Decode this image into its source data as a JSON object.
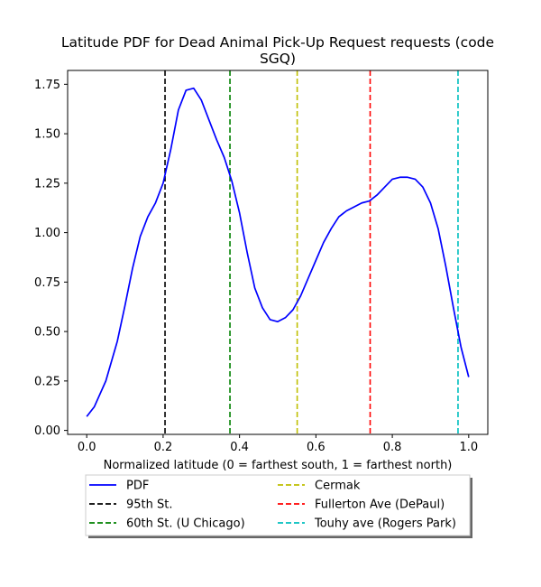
{
  "chart_data": {
    "type": "line",
    "title_line1": "Latitude PDF for Dead Animal Pick-Up Request  requests (code",
    "title_line2": "SGQ)",
    "xlabel": "Normalized latitude (0 = farthest south, 1 = farthest north)",
    "ylabel": "",
    "xlim": [
      -0.05,
      1.05
    ],
    "ylim": [
      -0.02,
      1.82
    ],
    "x_ticks": [
      0.0,
      0.2,
      0.4,
      0.6,
      0.8,
      1.0
    ],
    "x_tick_labels": [
      "0.0",
      "0.2",
      "0.4",
      "0.6",
      "0.8",
      "1.0"
    ],
    "y_ticks": [
      0.0,
      0.25,
      0.5,
      0.75,
      1.0,
      1.25,
      1.5,
      1.75
    ],
    "y_tick_labels": [
      "0.00",
      "0.25",
      "0.50",
      "0.75",
      "1.00",
      "1.25",
      "1.50",
      "1.75"
    ],
    "grid": false,
    "legend_placement": "below the axes, two columns",
    "series": [
      {
        "name": "PDF",
        "color": "#0000ff",
        "style": "solid",
        "x": [
          0.0,
          0.02,
          0.05,
          0.08,
          0.1,
          0.12,
          0.14,
          0.16,
          0.18,
          0.2,
          0.22,
          0.24,
          0.26,
          0.28,
          0.3,
          0.32,
          0.34,
          0.36,
          0.38,
          0.4,
          0.42,
          0.44,
          0.46,
          0.48,
          0.5,
          0.52,
          0.54,
          0.56,
          0.58,
          0.6,
          0.62,
          0.64,
          0.66,
          0.68,
          0.7,
          0.72,
          0.74,
          0.76,
          0.78,
          0.8,
          0.82,
          0.84,
          0.86,
          0.88,
          0.9,
          0.92,
          0.94,
          0.96,
          0.98,
          1.0
        ],
        "y": [
          0.07,
          0.12,
          0.25,
          0.45,
          0.63,
          0.82,
          0.98,
          1.08,
          1.15,
          1.25,
          1.42,
          1.62,
          1.72,
          1.73,
          1.67,
          1.57,
          1.47,
          1.38,
          1.26,
          1.1,
          0.9,
          0.72,
          0.62,
          0.56,
          0.55,
          0.57,
          0.61,
          0.68,
          0.77,
          0.86,
          0.95,
          1.02,
          1.08,
          1.11,
          1.13,
          1.15,
          1.16,
          1.19,
          1.23,
          1.27,
          1.28,
          1.28,
          1.27,
          1.23,
          1.15,
          1.02,
          0.83,
          0.62,
          0.42,
          0.27
        ]
      }
    ],
    "vlines": [
      {
        "name": "95th St.",
        "x": 0.205,
        "color": "#000000",
        "style": "dashed"
      },
      {
        "name": "60th St. (U Chicago)",
        "x": 0.375,
        "color": "#008000",
        "style": "dashed"
      },
      {
        "name": "Cermak",
        "x": 0.551,
        "color": "#bfbf00",
        "style": "dashed"
      },
      {
        "name": "Fullerton Ave (DePaul)",
        "x": 0.742,
        "color": "#ff0000",
        "style": "dashed"
      },
      {
        "name": "Touhy ave (Rogers Park)",
        "x": 0.972,
        "color": "#00bfbf",
        "style": "dashed"
      }
    ],
    "legend": [
      {
        "label": "PDF",
        "color": "#0000ff",
        "style": "solid"
      },
      {
        "label": "95th St.",
        "color": "#000000",
        "style": "dashed"
      },
      {
        "label": "60th St. (U Chicago)",
        "color": "#008000",
        "style": "dashed"
      },
      {
        "label": "Cermak",
        "color": "#bfbf00",
        "style": "dashed"
      },
      {
        "label": "Fullerton Ave (DePaul)",
        "color": "#ff0000",
        "style": "dashed"
      },
      {
        "label": "Touhy ave (Rogers Park)",
        "color": "#00bfbf",
        "style": "dashed"
      }
    ]
  }
}
